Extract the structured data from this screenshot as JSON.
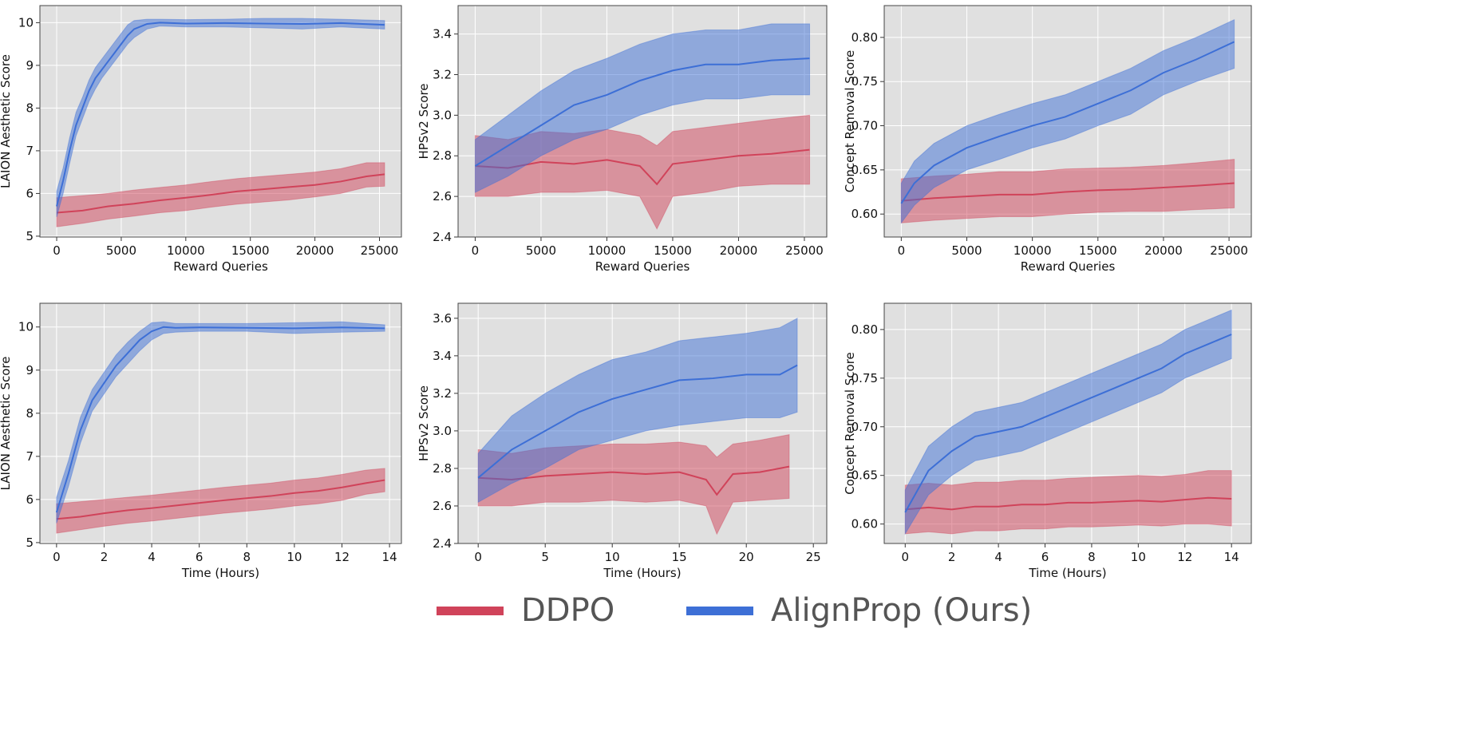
{
  "colors": {
    "ddpo": "#d0435a",
    "alignprop": "#3d6fd6",
    "axes_bg": "#e0e0e0",
    "grid": "#ffffff"
  },
  "legend": {
    "position": "bottom-center",
    "items": [
      {
        "label": "DDPO",
        "color": "#d0435a"
      },
      {
        "label": "AlignProp (Ours)",
        "color": "#3d6fd6"
      }
    ]
  },
  "chart_data": [
    {
      "type": "line",
      "xlabel": "Reward Queries",
      "ylabel": "LAION Aesthetic Score",
      "grid": true,
      "xlim": [
        -1300,
        26700
      ],
      "ylim": [
        4.98,
        10.4
      ],
      "xticks": [
        0,
        5000,
        10000,
        15000,
        20000,
        25000
      ],
      "yticks": [
        5,
        6,
        7,
        8,
        9,
        10
      ],
      "series": [
        {
          "name": "DDPO",
          "x": [
            0,
            2000,
            4000,
            6000,
            8000,
            10000,
            12000,
            14000,
            16000,
            18000,
            20000,
            22000,
            24000,
            25400
          ],
          "mean": [
            5.55,
            5.6,
            5.7,
            5.76,
            5.84,
            5.9,
            5.97,
            6.05,
            6.1,
            6.15,
            6.2,
            6.28,
            6.4,
            6.45
          ],
          "lower": [
            5.22,
            5.3,
            5.4,
            5.47,
            5.55,
            5.6,
            5.68,
            5.75,
            5.8,
            5.85,
            5.92,
            6.0,
            6.15,
            6.17
          ],
          "upper": [
            5.9,
            5.95,
            6.0,
            6.08,
            6.14,
            6.2,
            6.28,
            6.35,
            6.4,
            6.45,
            6.5,
            6.58,
            6.72,
            6.72
          ]
        },
        {
          "name": "AlignProp (Ours)",
          "x": [
            0,
            500,
            1000,
            1500,
            2000,
            2500,
            3000,
            3500,
            4000,
            4500,
            5000,
            5500,
            6000,
            7000,
            8000,
            10000,
            13000,
            16000,
            19000,
            22000,
            25400
          ],
          "mean": [
            5.7,
            6.3,
            7.0,
            7.6,
            8.0,
            8.4,
            8.7,
            8.9,
            9.1,
            9.3,
            9.5,
            9.7,
            9.85,
            9.97,
            10.0,
            9.98,
            9.99,
            9.98,
            9.97,
            9.99,
            9.95
          ],
          "lower": [
            5.45,
            6.0,
            6.7,
            7.35,
            7.75,
            8.15,
            8.45,
            8.7,
            8.9,
            9.1,
            9.3,
            9.5,
            9.65,
            9.85,
            9.92,
            9.9,
            9.9,
            9.88,
            9.85,
            9.9,
            9.85
          ],
          "upper": [
            6.05,
            6.6,
            7.3,
            7.9,
            8.25,
            8.65,
            8.95,
            9.15,
            9.35,
            9.55,
            9.75,
            9.95,
            10.05,
            10.08,
            10.08,
            10.07,
            10.08,
            10.1,
            10.1,
            10.08,
            10.05
          ]
        }
      ]
    },
    {
      "type": "line",
      "xlabel": "Reward Queries",
      "ylabel": "HPSv2 Score",
      "grid": true,
      "xlim": [
        -1300,
        26700
      ],
      "ylim": [
        2.4,
        3.54
      ],
      "xticks": [
        0,
        5000,
        10000,
        15000,
        20000,
        25000
      ],
      "yticks": [
        2.4,
        2.6,
        2.8,
        3.0,
        3.2,
        3.4
      ],
      "series": [
        {
          "name": "DDPO",
          "x": [
            0,
            2500,
            5000,
            7500,
            10000,
            12500,
            13800,
            15000,
            17500,
            20000,
            22500,
            25400
          ],
          "mean": [
            2.75,
            2.74,
            2.77,
            2.76,
            2.78,
            2.75,
            2.66,
            2.76,
            2.78,
            2.8,
            2.81,
            2.83
          ],
          "lower": [
            2.6,
            2.6,
            2.62,
            2.62,
            2.63,
            2.6,
            2.44,
            2.6,
            2.62,
            2.65,
            2.66,
            2.66
          ],
          "upper": [
            2.9,
            2.88,
            2.92,
            2.91,
            2.93,
            2.9,
            2.85,
            2.92,
            2.94,
            2.96,
            2.98,
            3.0
          ]
        },
        {
          "name": "AlignProp (Ours)",
          "x": [
            0,
            2500,
            5000,
            7500,
            10000,
            12500,
            15000,
            17500,
            20000,
            22500,
            25400
          ],
          "mean": [
            2.75,
            2.85,
            2.95,
            3.05,
            3.1,
            3.17,
            3.22,
            3.25,
            3.25,
            3.27,
            3.28
          ],
          "lower": [
            2.62,
            2.7,
            2.8,
            2.88,
            2.93,
            3.0,
            3.05,
            3.08,
            3.08,
            3.1,
            3.1
          ],
          "upper": [
            2.88,
            3.0,
            3.12,
            3.22,
            3.28,
            3.35,
            3.4,
            3.42,
            3.42,
            3.45,
            3.45
          ]
        }
      ]
    },
    {
      "type": "line",
      "xlabel": "Reward Queries",
      "ylabel": "Concept Removal Score",
      "grid": true,
      "xlim": [
        -1300,
        26700
      ],
      "ylim": [
        0.574,
        0.836
      ],
      "xticks": [
        0,
        5000,
        10000,
        15000,
        20000,
        25000
      ],
      "yticks": [
        0.6,
        0.65,
        0.7,
        0.75,
        0.8
      ],
      "series": [
        {
          "name": "DDPO",
          "x": [
            0,
            2500,
            5000,
            7500,
            10000,
            12500,
            15000,
            17500,
            20000,
            22500,
            25400
          ],
          "mean": [
            0.615,
            0.618,
            0.62,
            0.622,
            0.622,
            0.625,
            0.627,
            0.628,
            0.63,
            0.632,
            0.635
          ],
          "lower": [
            0.59,
            0.593,
            0.595,
            0.597,
            0.597,
            0.6,
            0.602,
            0.603,
            0.603,
            0.605,
            0.607
          ],
          "upper": [
            0.64,
            0.643,
            0.645,
            0.648,
            0.648,
            0.651,
            0.652,
            0.653,
            0.655,
            0.658,
            0.662
          ]
        },
        {
          "name": "AlignProp (Ours)",
          "x": [
            0,
            1000,
            2500,
            5000,
            7500,
            10000,
            12500,
            15000,
            17500,
            20000,
            22500,
            25400
          ],
          "mean": [
            0.612,
            0.635,
            0.655,
            0.675,
            0.688,
            0.7,
            0.71,
            0.725,
            0.74,
            0.76,
            0.775,
            0.795
          ],
          "lower": [
            0.59,
            0.61,
            0.63,
            0.65,
            0.662,
            0.675,
            0.685,
            0.7,
            0.713,
            0.735,
            0.75,
            0.765
          ],
          "upper": [
            0.635,
            0.66,
            0.68,
            0.7,
            0.713,
            0.725,
            0.735,
            0.75,
            0.765,
            0.785,
            0.8,
            0.82
          ]
        }
      ]
    },
    {
      "type": "line",
      "xlabel": "Time (Hours)",
      "ylabel": "LAION Aesthetic Score",
      "grid": true,
      "xlim": [
        -0.7,
        14.5
      ],
      "ylim": [
        4.98,
        10.55
      ],
      "xticks": [
        0,
        2,
        4,
        6,
        8,
        10,
        12,
        14
      ],
      "yticks": [
        5,
        6,
        7,
        8,
        9,
        10
      ],
      "series": [
        {
          "name": "DDPO",
          "x": [
            0,
            1,
            2,
            3,
            4,
            5,
            6,
            7,
            8,
            9,
            10,
            11,
            12,
            13,
            13.8
          ],
          "mean": [
            5.55,
            5.6,
            5.68,
            5.75,
            5.8,
            5.86,
            5.92,
            5.98,
            6.03,
            6.08,
            6.15,
            6.2,
            6.28,
            6.38,
            6.45
          ],
          "lower": [
            5.22,
            5.3,
            5.38,
            5.45,
            5.5,
            5.56,
            5.62,
            5.68,
            5.73,
            5.78,
            5.85,
            5.9,
            5.98,
            6.12,
            6.18
          ],
          "upper": [
            5.9,
            5.95,
            6.0,
            6.05,
            6.1,
            6.16,
            6.22,
            6.28,
            6.33,
            6.38,
            6.45,
            6.5,
            6.58,
            6.68,
            6.72
          ]
        },
        {
          "name": "AlignProp (Ours)",
          "x": [
            0,
            0.5,
            1,
            1.5,
            2,
            2.5,
            3,
            3.5,
            4,
            4.5,
            5,
            6,
            8,
            10,
            12,
            13.8
          ],
          "mean": [
            5.7,
            6.6,
            7.6,
            8.3,
            8.7,
            9.1,
            9.4,
            9.7,
            9.9,
            10.0,
            9.98,
            9.99,
            9.98,
            9.97,
            9.99,
            9.97
          ],
          "lower": [
            5.45,
            6.3,
            7.3,
            8.05,
            8.45,
            8.85,
            9.15,
            9.45,
            9.7,
            9.85,
            9.88,
            9.9,
            9.9,
            9.85,
            9.88,
            9.9
          ],
          "upper": [
            6.05,
            6.9,
            7.9,
            8.55,
            8.95,
            9.35,
            9.65,
            9.9,
            10.1,
            10.12,
            10.08,
            10.08,
            10.08,
            10.1,
            10.12,
            10.05
          ]
        }
      ]
    },
    {
      "type": "line",
      "xlabel": "Time (Hours)",
      "ylabel": "HPSv2 Score",
      "grid": true,
      "xlim": [
        -1.5,
        26
      ],
      "ylim": [
        2.4,
        3.68
      ],
      "xticks": [
        0,
        5,
        10,
        15,
        20,
        25
      ],
      "yticks": [
        2.4,
        2.6,
        2.8,
        3.0,
        3.2,
        3.4,
        3.6
      ],
      "series": [
        {
          "name": "DDPO",
          "x": [
            0,
            2.5,
            5,
            7.5,
            10,
            12.5,
            15,
            17,
            17.8,
            19,
            21,
            23.2
          ],
          "mean": [
            2.75,
            2.74,
            2.76,
            2.77,
            2.78,
            2.77,
            2.78,
            2.74,
            2.66,
            2.77,
            2.78,
            2.81
          ],
          "lower": [
            2.6,
            2.6,
            2.62,
            2.62,
            2.63,
            2.62,
            2.63,
            2.6,
            2.45,
            2.62,
            2.63,
            2.64
          ],
          "upper": [
            2.9,
            2.88,
            2.91,
            2.92,
            2.93,
            2.93,
            2.94,
            2.92,
            2.86,
            2.93,
            2.95,
            2.98
          ]
        },
        {
          "name": "AlignProp (Ours)",
          "x": [
            0,
            2.5,
            5,
            7.5,
            10,
            12.5,
            15,
            17.5,
            20,
            22.5,
            23.8
          ],
          "mean": [
            2.75,
            2.9,
            3.0,
            3.1,
            3.17,
            3.22,
            3.27,
            3.28,
            3.3,
            3.3,
            3.35
          ],
          "lower": [
            2.62,
            2.72,
            2.8,
            2.9,
            2.95,
            3.0,
            3.03,
            3.05,
            3.07,
            3.07,
            3.1
          ],
          "upper": [
            2.88,
            3.08,
            3.2,
            3.3,
            3.38,
            3.42,
            3.48,
            3.5,
            3.52,
            3.55,
            3.6
          ]
        }
      ]
    },
    {
      "type": "line",
      "xlabel": "Time (Hours)",
      "ylabel": "Concept Removal Score",
      "grid": true,
      "xlim": [
        -0.9,
        14.85
      ],
      "ylim": [
        0.58,
        0.827
      ],
      "xticks": [
        0,
        2,
        4,
        6,
        8,
        10,
        12,
        14
      ],
      "yticks": [
        0.6,
        0.65,
        0.7,
        0.75,
        0.8
      ],
      "series": [
        {
          "name": "DDPO",
          "x": [
            0,
            1,
            2,
            3,
            4,
            5,
            6,
            7,
            8,
            9,
            10,
            11,
            12,
            13,
            14
          ],
          "mean": [
            0.615,
            0.617,
            0.615,
            0.618,
            0.618,
            0.62,
            0.62,
            0.622,
            0.622,
            0.623,
            0.624,
            0.623,
            0.625,
            0.627,
            0.626
          ],
          "lower": [
            0.59,
            0.592,
            0.59,
            0.593,
            0.593,
            0.595,
            0.595,
            0.597,
            0.597,
            0.598,
            0.599,
            0.598,
            0.6,
            0.6,
            0.598
          ],
          "upper": [
            0.64,
            0.642,
            0.64,
            0.643,
            0.643,
            0.645,
            0.645,
            0.647,
            0.648,
            0.649,
            0.65,
            0.649,
            0.651,
            0.655,
            0.655
          ]
        },
        {
          "name": "AlignProp (Ours)",
          "x": [
            0,
            1,
            2,
            3,
            4,
            5,
            6,
            7,
            8,
            9,
            10,
            11,
            12,
            13,
            14
          ],
          "mean": [
            0.612,
            0.655,
            0.675,
            0.69,
            0.695,
            0.7,
            0.71,
            0.72,
            0.73,
            0.74,
            0.75,
            0.76,
            0.775,
            0.785,
            0.795
          ],
          "lower": [
            0.59,
            0.63,
            0.65,
            0.665,
            0.67,
            0.675,
            0.685,
            0.695,
            0.705,
            0.715,
            0.725,
            0.735,
            0.75,
            0.76,
            0.77
          ],
          "upper": [
            0.635,
            0.68,
            0.7,
            0.715,
            0.72,
            0.725,
            0.735,
            0.745,
            0.755,
            0.765,
            0.775,
            0.785,
            0.8,
            0.81,
            0.82
          ]
        }
      ]
    }
  ]
}
